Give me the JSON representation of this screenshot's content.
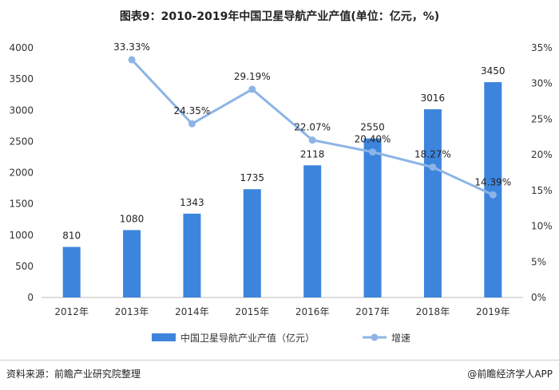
{
  "chart_data": {
    "type": "bar+line",
    "title": "图表9：2010-2019年中国卫星导航产业产值(单位：亿元，%)",
    "categories": [
      "2012年",
      "2013年",
      "2014年",
      "2015年",
      "2016年",
      "2017年",
      "2018年",
      "2019年"
    ],
    "series": [
      {
        "name": "中国卫星导航产业产值（亿元）",
        "type": "bar",
        "axis": "left",
        "color": "#3d85dc",
        "values": [
          810,
          1080,
          1343,
          1735,
          2118,
          2550,
          3016,
          3450
        ],
        "labels": [
          "810",
          "1080",
          "1343",
          "1735",
          "2118",
          "2550",
          "3016",
          "3450"
        ]
      },
      {
        "name": "增速",
        "type": "line",
        "axis": "right",
        "color": "#8db4e6",
        "values": [
          null,
          33.33,
          24.35,
          29.19,
          22.07,
          20.4,
          18.27,
          14.39
        ],
        "labels": [
          "",
          "33.33%",
          "24.35%",
          "29.19%",
          "22.07%",
          "20.40%",
          "18.27%",
          "14.39%"
        ]
      }
    ],
    "yleft": {
      "range": [
        0,
        4000
      ],
      "ticks": [
        "0",
        "500",
        "1000",
        "1500",
        "2000",
        "2500",
        "3000",
        "3500",
        "4000"
      ]
    },
    "yright": {
      "range": [
        0,
        35
      ],
      "ticks": [
        "0%",
        "5%",
        "10%",
        "15%",
        "20%",
        "25%",
        "30%",
        "35%"
      ]
    },
    "legend": "bottom",
    "grid": false
  },
  "footer": {
    "source": "资料来源：前瞻产业研究院整理",
    "app": "@前瞻经济学人APP"
  }
}
